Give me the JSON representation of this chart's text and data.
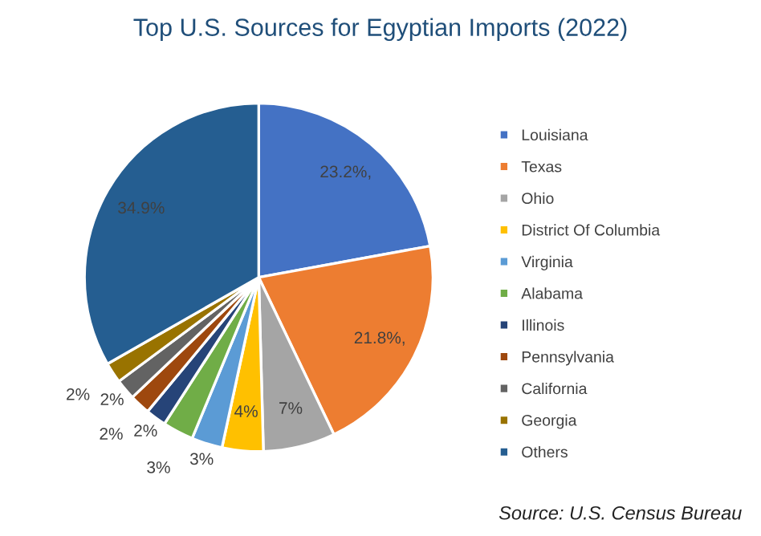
{
  "chart_data": {
    "type": "pie",
    "title": "Top U.S. Sources for Egyptian Imports (2022)",
    "categories": [
      "Louisiana",
      "Texas",
      "Ohio",
      "District Of Columbia",
      "Virginia",
      "Alabama",
      "Illinois",
      "Pennsylvania",
      "California",
      "Georgia",
      "Others"
    ],
    "values": [
      23.2,
      21.8,
      7,
      4,
      3,
      3,
      2,
      2,
      2,
      2,
      34.9
    ],
    "value_labels": [
      "23.2%,",
      "21.8%,",
      "7%",
      "4%",
      "3%",
      "3%",
      "2%",
      "2%",
      "2%",
      "2%",
      "34.9%"
    ],
    "colors": [
      "#4472c4",
      "#ed7d31",
      "#a5a5a5",
      "#ffc000",
      "#5b9bd5",
      "#70ad47",
      "#264478",
      "#9e480e",
      "#636363",
      "#997300",
      "#255e91"
    ],
    "legend": "right",
    "annotations": [
      "Source: U.S. Census Bureau"
    ]
  }
}
